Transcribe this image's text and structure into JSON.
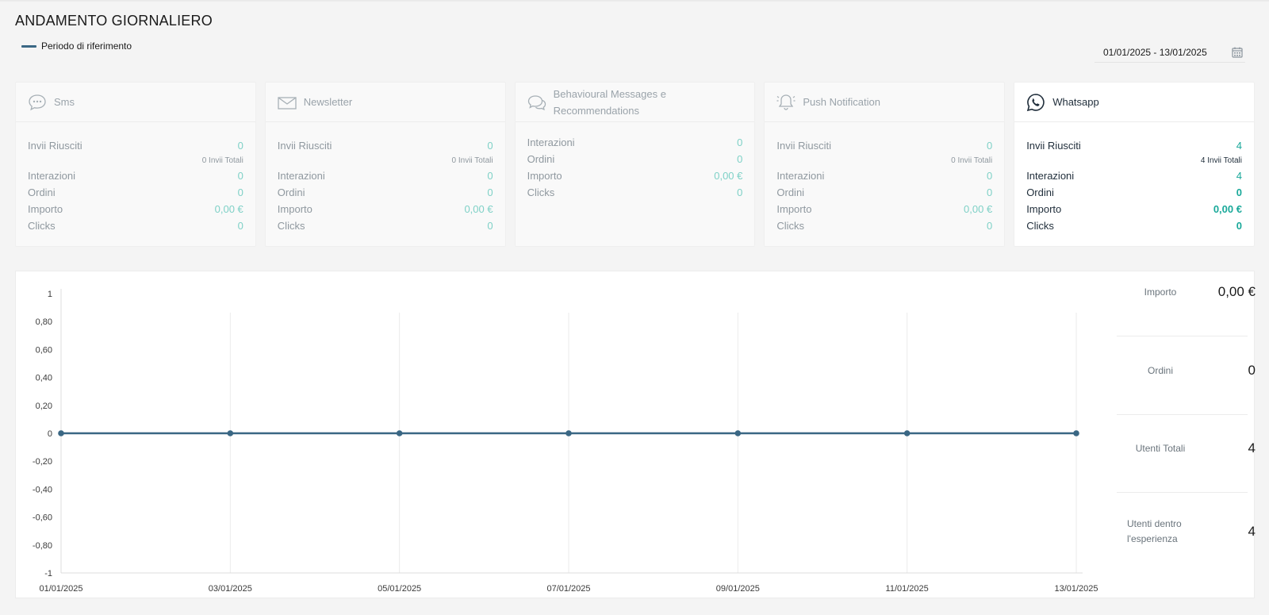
{
  "header": {
    "title": "ANDAMENTO GIORNALIERO",
    "legend_label": "Periodo di riferimento",
    "date_range": "01/01/2025 - 13/01/2025"
  },
  "colors": {
    "series": "#3a6784",
    "value_muted": "#7fd1c7",
    "value_active": "#1aa99a"
  },
  "cards": [
    {
      "title": "Sms",
      "icon": "sms-bubble-icon",
      "invii_label": "Invii Riusciti",
      "invii": "0",
      "invii_totali": "0 Invii Totali",
      "interazioni_label": "Interazioni",
      "interazioni": "0",
      "ordini_label": "Ordini",
      "ordini": "0",
      "importo_label": "Importo",
      "importo": "0,00 €",
      "clicks_label": "Clicks",
      "clicks": "0"
    },
    {
      "title": "Newsletter",
      "icon": "envelope-icon",
      "invii_label": "Invii Riusciti",
      "invii": "0",
      "invii_totali": "0 Invii Totali",
      "interazioni_label": "Interazioni",
      "interazioni": "0",
      "ordini_label": "Ordini",
      "ordini": "0",
      "importo_label": "Importo",
      "importo": "0,00 €",
      "clicks_label": "Clicks",
      "clicks": "0"
    },
    {
      "title": "Behavioural Messages e Recommendations",
      "icon": "chat-bubbles-icon",
      "interazioni_label": "Interazioni",
      "interazioni": "0",
      "ordini_label": "Ordini",
      "ordini": "0",
      "importo_label": "Importo",
      "importo": "0,00 €",
      "clicks_label": "Clicks",
      "clicks": "0"
    },
    {
      "title": "Push Notification",
      "icon": "bell-icon",
      "invii_label": "Invii Riusciti",
      "invii": "0",
      "invii_totali": "0 Invii Totali",
      "interazioni_label": "Interazioni",
      "interazioni": "0",
      "ordini_label": "Ordini",
      "ordini": "0",
      "importo_label": "Importo",
      "importo": "0,00 €",
      "clicks_label": "Clicks",
      "clicks": "0"
    },
    {
      "title": "Whatsapp",
      "icon": "whatsapp-icon",
      "invii_label": "Invii Riusciti",
      "invii": "4",
      "invii_totali": "4 Invii Totali",
      "interazioni_label": "Interazioni",
      "interazioni": "4",
      "ordini_label": "Ordini",
      "ordini": "0",
      "importo_label": "Importo",
      "importo": "0,00 €",
      "clicks_label": "Clicks",
      "clicks": "0"
    }
  ],
  "stats": [
    {
      "label": "Importo",
      "value": "0,00 €"
    },
    {
      "label": "Ordini",
      "value": "0"
    },
    {
      "label": "Utenti Totali",
      "value": "4"
    },
    {
      "label": "Utenti dentro l'esperienza",
      "value": "4"
    }
  ],
  "chart_data": {
    "type": "line",
    "x": [
      "01/01/2025",
      "03/01/2025",
      "05/01/2025",
      "07/01/2025",
      "09/01/2025",
      "11/01/2025",
      "13/01/2025"
    ],
    "series": [
      {
        "values": [
          0,
          0,
          0,
          0,
          0,
          0,
          0
        ]
      }
    ],
    "yticks": [
      "1",
      "0,80",
      "0,60",
      "0,40",
      "0,20",
      "0",
      "-0,20",
      "-0,40",
      "-0,60",
      "-0,80",
      "-1"
    ],
    "ylim": [
      -1,
      1
    ],
    "grid": "vertical"
  }
}
